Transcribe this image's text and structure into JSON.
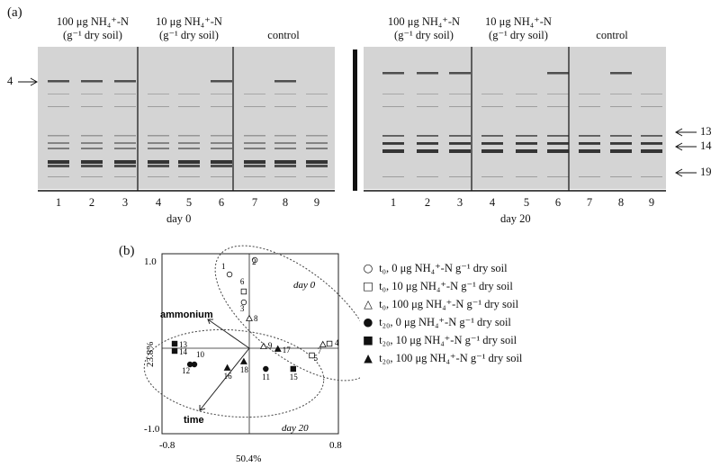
{
  "panel_a": {
    "label": "(a)",
    "groups_day0": [
      {
        "line1": "100 μg NH₄⁺-N",
        "line2": "(g⁻¹ dry soil)"
      },
      {
        "line1": "10 μg NH₄⁺-N",
        "line2": "(g⁻¹ dry soil)"
      },
      {
        "line1": "control",
        "line2": ""
      }
    ],
    "groups_day20": [
      {
        "line1": "100 μg NH₄⁺-N",
        "line2": "(g⁻¹ dry soil)"
      },
      {
        "line1": "10 μg NH₄⁺-N",
        "line2": "(g⁻¹ dry soil)"
      },
      {
        "line1": "control",
        "line2": ""
      }
    ],
    "lanes": [
      "1",
      "2",
      "3",
      "4",
      "5",
      "6",
      "7",
      "8",
      "9"
    ],
    "day0_label": "day 0",
    "day20_label": "day 20",
    "left_marker": "4",
    "right_markers": [
      "13",
      "14",
      "19"
    ]
  },
  "panel_b": {
    "label": "(b)",
    "x_axis_title": "50.4%",
    "y_axis_title": "23.8%",
    "x_min_label": "-0.8",
    "x_max_label": "0.8",
    "y_max_label": "1.0",
    "y_min_label": "-1.0",
    "vector_ammonium": "ammonium",
    "vector_time": "time",
    "cluster_day0": "day 0",
    "cluster_day20": "day 20",
    "legend": [
      {
        "symbol": "open-circle",
        "glyph": "○",
        "time": "t₀,",
        "text": "0 μg NH₄⁺-N g⁻¹ dry soil"
      },
      {
        "symbol": "open-square",
        "glyph": "□",
        "time": "t₀,",
        "text": "10 μg NH₄⁺-N g⁻¹ dry soil"
      },
      {
        "symbol": "open-triangle",
        "glyph": "△",
        "time": "t₀,",
        "text": "100 μg NH₄⁺-N g⁻¹ dry soil"
      },
      {
        "symbol": "filled-circle",
        "glyph": "●",
        "time": "t₂₀,",
        "text": "0 μg NH₄⁺-N g⁻¹ dry soil"
      },
      {
        "symbol": "filled-square",
        "glyph": "■",
        "time": "t₂₀,",
        "text": "10 μg NH₄⁺-N g⁻¹ dry soil"
      },
      {
        "symbol": "filled-triangle",
        "glyph": "▲",
        "time": "t₂₀,",
        "text": "100 μg NH₄⁺-N g⁻¹ dry soil"
      }
    ],
    "points": [
      {
        "label": "1",
        "symbol": "open-circle",
        "x": -0.18,
        "y": 0.82
      },
      {
        "label": "2",
        "symbol": "open-circle",
        "x": 0.05,
        "y": 0.98
      },
      {
        "label": "3",
        "symbol": "open-circle",
        "x": -0.05,
        "y": 0.51
      },
      {
        "label": "6",
        "symbol": "open-square",
        "x": -0.05,
        "y": 0.63
      },
      {
        "label": "4",
        "symbol": "open-square",
        "x": 0.73,
        "y": 0.05
      },
      {
        "label": "5",
        "symbol": "open-square",
        "x": 0.57,
        "y": -0.08
      },
      {
        "label": "8",
        "symbol": "open-triangle",
        "x": 0.0,
        "y": 0.33
      },
      {
        "label": "9",
        "symbol": "open-triangle",
        "x": 0.13,
        "y": 0.02
      },
      {
        "label": "7",
        "symbol": "open-triangle",
        "x": 0.67,
        "y": 0.04
      },
      {
        "label": "10",
        "symbol": "filled-circle",
        "x": -0.5,
        "y": -0.18
      },
      {
        "label": "12",
        "symbol": "filled-circle",
        "x": -0.54,
        "y": -0.18
      },
      {
        "label": "11",
        "symbol": "filled-circle",
        "x": 0.15,
        "y": -0.23
      },
      {
        "label": "13",
        "symbol": "filled-square",
        "x": -0.68,
        "y": 0.05
      },
      {
        "label": "14",
        "symbol": "filled-square",
        "x": -0.68,
        "y": -0.03
      },
      {
        "label": "15",
        "symbol": "filled-square",
        "x": 0.4,
        "y": -0.23
      },
      {
        "label": "16",
        "symbol": "filled-triangle",
        "x": -0.2,
        "y": -0.22
      },
      {
        "label": "17",
        "symbol": "filled-triangle",
        "x": 0.26,
        "y": -0.01
      },
      {
        "label": "18",
        "symbol": "filled-triangle",
        "x": -0.05,
        "y": -0.15
      }
    ]
  }
}
